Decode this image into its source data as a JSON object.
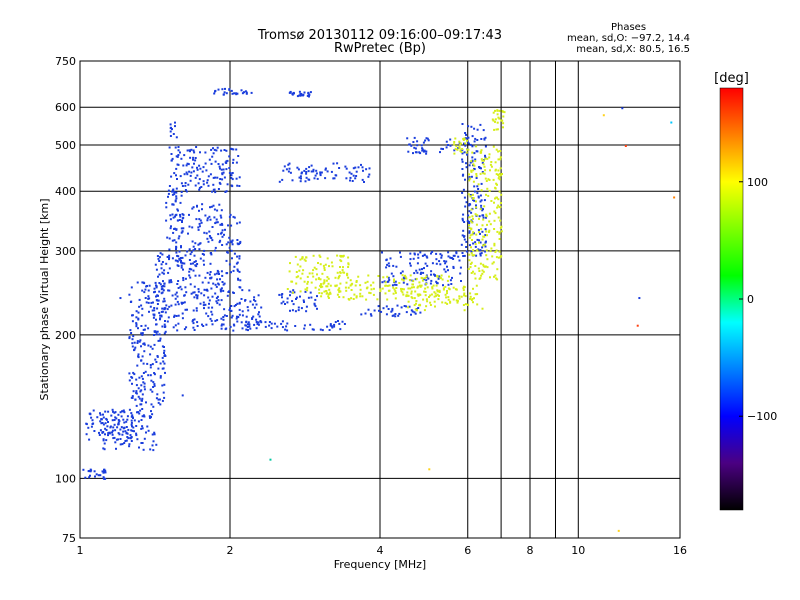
{
  "chart_data": {
    "type": "scatter",
    "title": "Tromsø 20130112 09:16:00–09:17:43",
    "subtitle": "RwPretec (Bp)",
    "xlabel": "Frequency [MHz]",
    "ylabel": "Stationary phase Virtual Height [km]",
    "x_scale": "log",
    "y_scale": "log",
    "xlim": [
      1,
      16
    ],
    "ylim": [
      75,
      750
    ],
    "x_ticks": [
      1,
      2,
      4,
      6,
      8,
      10,
      16
    ],
    "y_ticks": [
      75,
      100,
      200,
      300,
      400,
      500,
      600,
      750
    ],
    "x_gridlines": [
      2,
      4,
      6,
      7,
      8,
      9,
      10
    ],
    "y_gridlines": [
      100,
      200,
      300,
      400,
      500,
      600
    ],
    "phase_box": {
      "title": "Phases",
      "line_o": "mean, sd,O: −97.2, 14.4",
      "line_x": "mean, sd,X:  80.5, 16.5"
    },
    "colorbar": {
      "label": "[deg]",
      "range": [
        -180,
        180
      ],
      "ticks": [
        100,
        0,
        -100
      ],
      "colors": [
        "#ff0000",
        "#ff7f00",
        "#ffff00",
        "#7fff00",
        "#00ff00",
        "#00ffff",
        "#0080ff",
        "#0000ff",
        "#4b0082",
        "#000000"
      ]
    },
    "series": [
      {
        "mode": "O",
        "color": "#1a3ddc",
        "segments": [
          {
            "x": [
              1.01,
              1.12
            ],
            "y": [
              100,
              105
            ]
          },
          {
            "x": [
              1.02,
              1.3
            ],
            "y": [
              120,
              140
            ]
          },
          {
            "x": [
              1.1,
              1.42
            ],
            "y": [
              115,
              140
            ]
          },
          {
            "x": [
              1.25,
              1.48
            ],
            "y": [
              140,
              260
            ]
          },
          {
            "x": [
              1.4,
              1.52
            ],
            "y": [
              200,
              300
            ]
          },
          {
            "x": [
              1.48,
              1.6
            ],
            "y": [
              280,
              400
            ]
          },
          {
            "x": [
              1.5,
              1.56
            ],
            "y": [
              380,
              560
            ]
          },
          {
            "x": [
              1.52,
              2.3
            ],
            "y": [
              205,
              250
            ]
          },
          {
            "x": [
              1.55,
              2.1
            ],
            "y": [
              250,
              380
            ]
          },
          {
            "x": [
              1.55,
              2.1
            ],
            "y": [
              400,
              500
            ]
          },
          {
            "x": [
              2.1,
              3.4
            ],
            "y": [
              205,
              215
            ]
          },
          {
            "x": [
              2.5,
              3.8
            ],
            "y": [
              420,
              460
            ]
          },
          {
            "x": [
              2.5,
              3.0
            ],
            "y": [
              225,
              250
            ]
          },
          {
            "x": [
              3.6,
              4.8
            ],
            "y": [
              218,
              232
            ]
          },
          {
            "x": [
              4.0,
              5.8
            ],
            "y": [
              255,
              300
            ]
          },
          {
            "x": [
              4.5,
              6.0
            ],
            "y": [
              480,
              520
            ]
          },
          {
            "x": [
              5.8,
              6.5
            ],
            "y": [
              290,
              560
            ]
          },
          {
            "x": [
              1.85,
              2.2
            ],
            "y": [
              640,
              660
            ]
          },
          {
            "x": [
              2.6,
              2.9
            ],
            "y": [
              635,
              650
            ]
          }
        ]
      },
      {
        "mode": "X",
        "color": "#d6ee1a",
        "segments": [
          {
            "x": [
              2.6,
              3.5
            ],
            "y": [
              245,
              295
            ]
          },
          {
            "x": [
              3.0,
              5.5
            ],
            "y": [
              238,
              268
            ]
          },
          {
            "x": [
              4.5,
              6.4
            ],
            "y": [
              226,
              255
            ]
          },
          {
            "x": [
              6.0,
              7.0
            ],
            "y": [
              260,
              500
            ]
          },
          {
            "x": [
              5.6,
              6.0
            ],
            "y": [
              480,
              520
            ]
          },
          {
            "x": [
              6.7,
              7.1
            ],
            "y": [
              540,
              600
            ]
          }
        ]
      }
    ],
    "scatter_outliers": [
      {
        "x": 1.2,
        "y": 240,
        "color": "#1a3ddc"
      },
      {
        "x": 1.6,
        "y": 150,
        "color": "#1a3ddc"
      },
      {
        "x": 5.0,
        "y": 105,
        "color": "#ffd21a"
      },
      {
        "x": 2.4,
        "y": 110,
        "color": "#00c8a0"
      },
      {
        "x": 12.2,
        "y": 600,
        "color": "#1a3ddc"
      },
      {
        "x": 12.4,
        "y": 500,
        "color": "#ff4010"
      },
      {
        "x": 13.2,
        "y": 240,
        "color": "#1a3ddc"
      },
      {
        "x": 13.1,
        "y": 210,
        "color": "#ff4010"
      },
      {
        "x": 15.3,
        "y": 560,
        "color": "#00c8ff"
      },
      {
        "x": 15.5,
        "y": 390,
        "color": "#ff7f00"
      },
      {
        "x": 12.0,
        "y": 78,
        "color": "#ffd21a"
      },
      {
        "x": 11.2,
        "y": 580,
        "color": "#ffd21a"
      }
    ]
  }
}
